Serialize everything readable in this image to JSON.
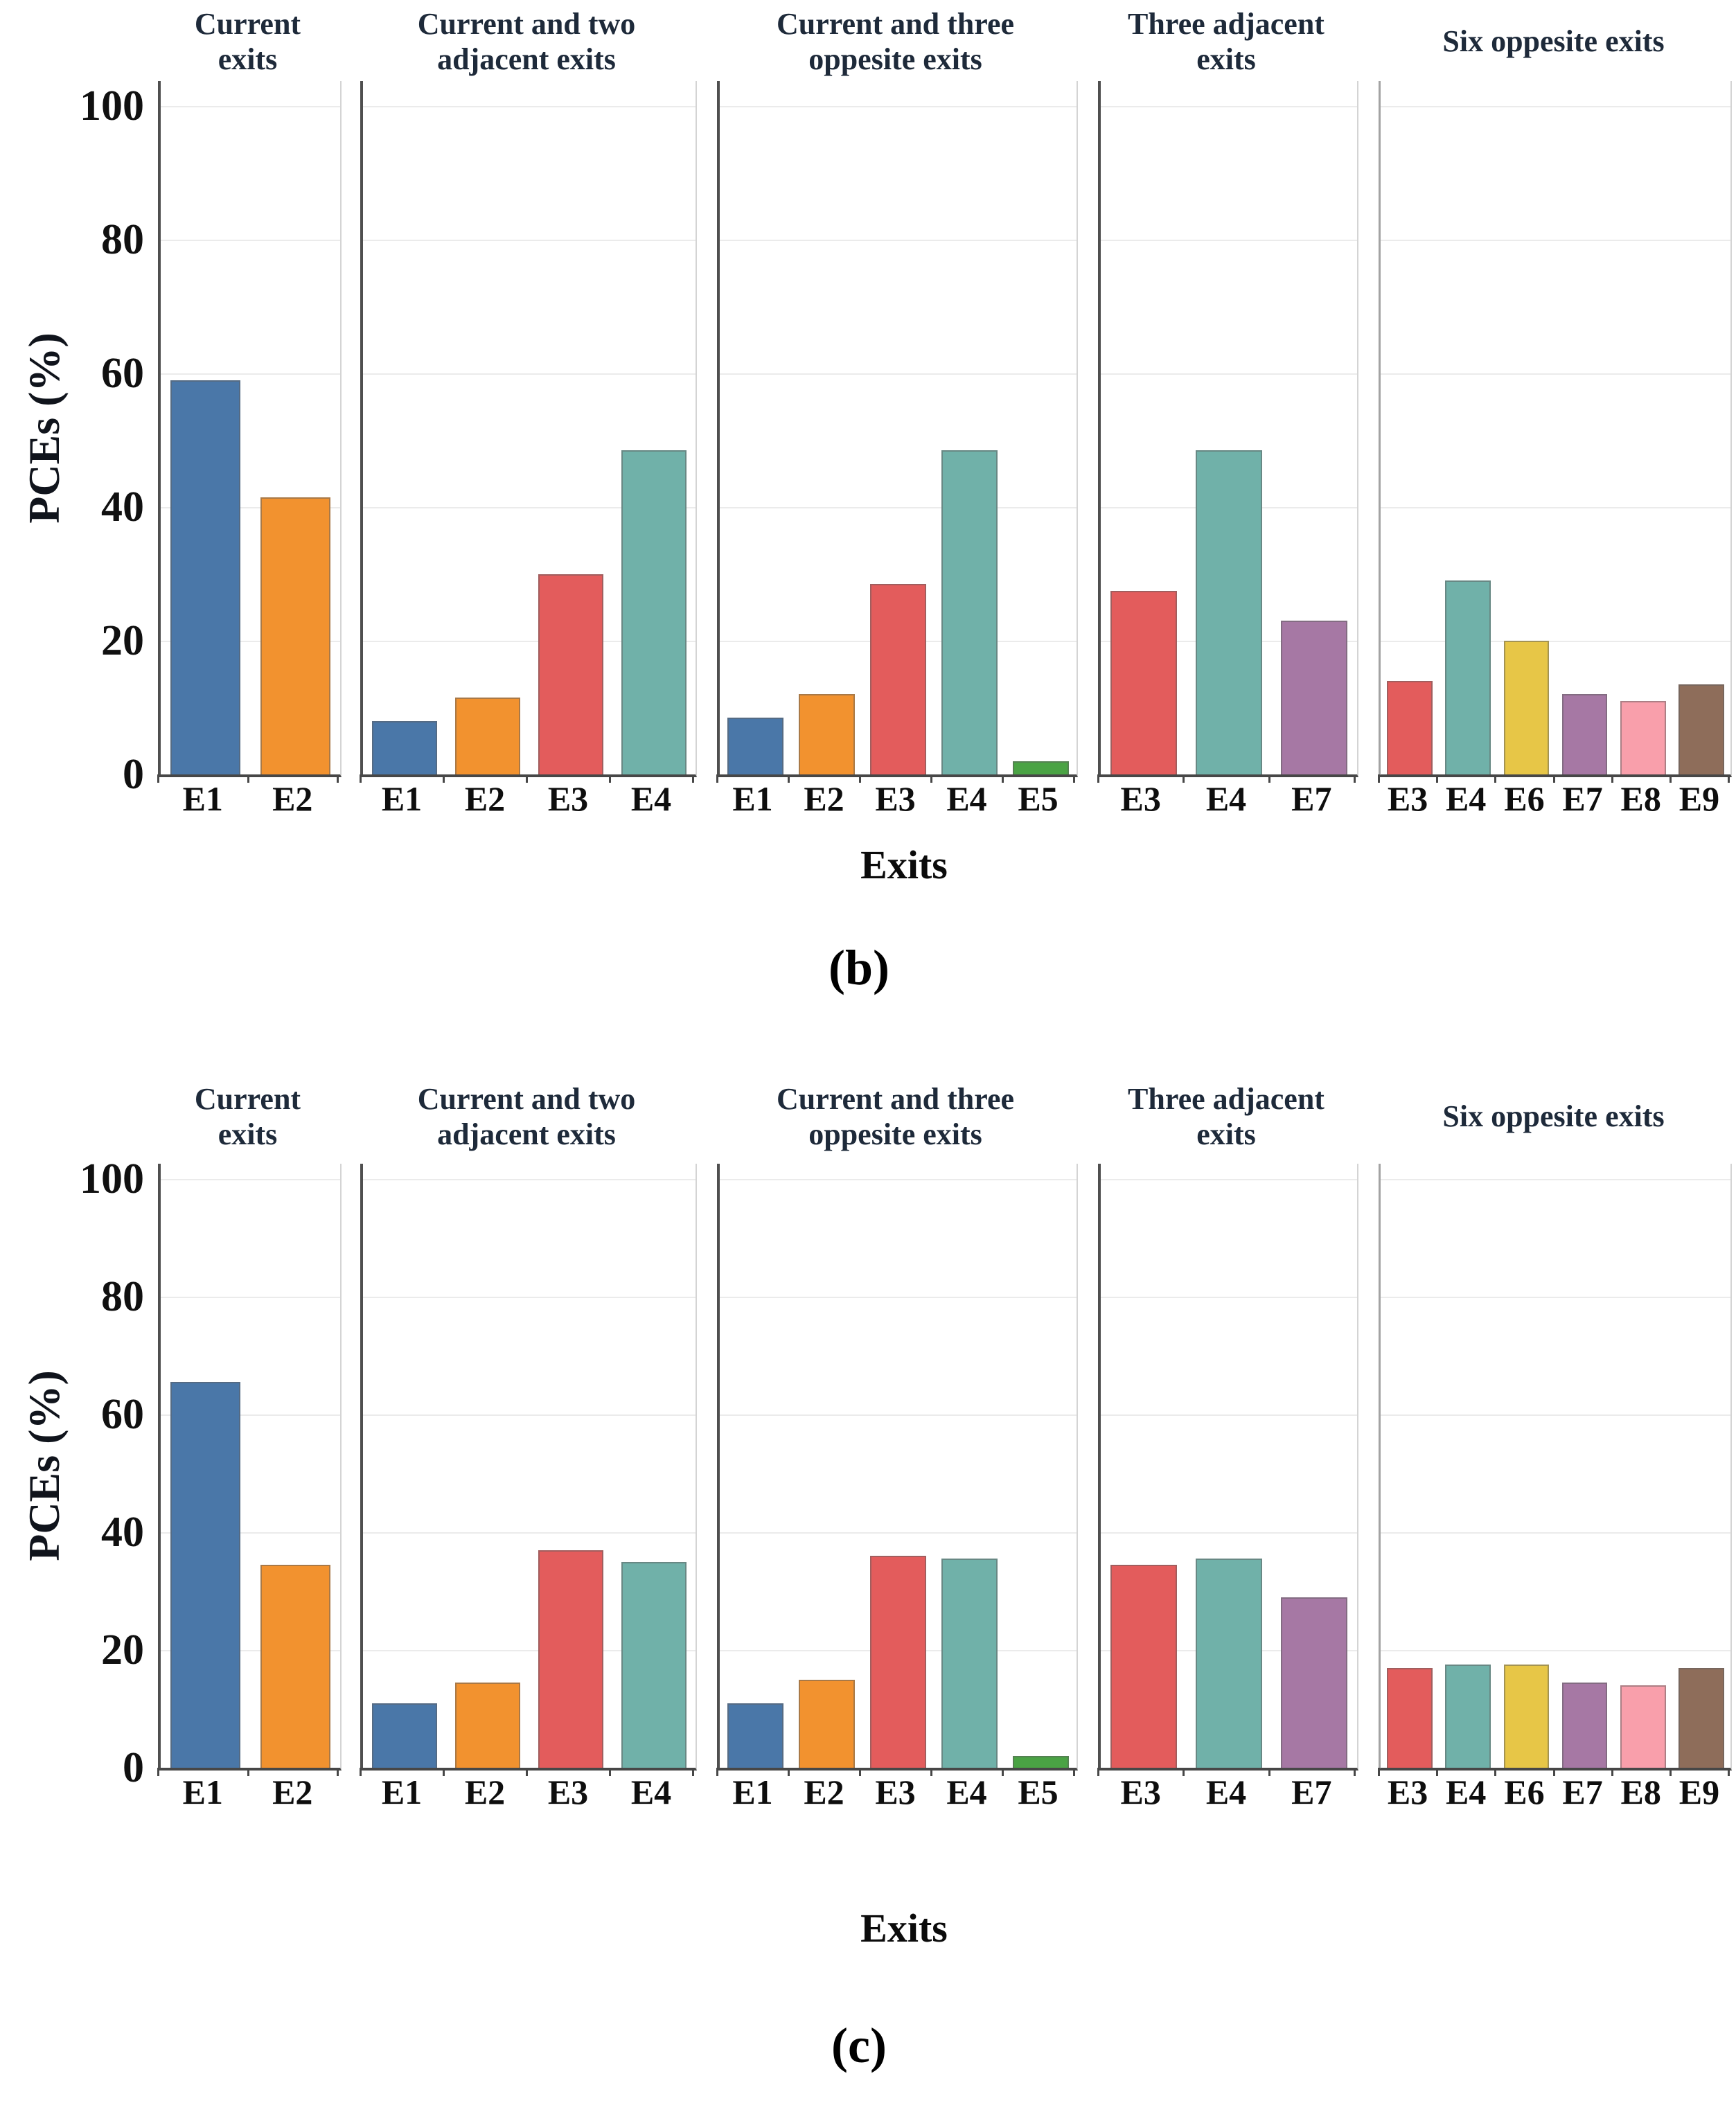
{
  "figure": {
    "y_axis_label": "PCEs (%)",
    "x_axis_label": "Exits",
    "captions": [
      "(b)",
      "(c)"
    ]
  },
  "colors": {
    "E1": "#4a77a8",
    "E2": "#f2922f",
    "E3": "#e35c5c",
    "E4": "#70b1a9",
    "E5": "#4aa344",
    "E6": "#e7c647",
    "E7": "#a678a4",
    "E8": "#f99fab",
    "E9": "#8e6d5a"
  },
  "chart_data": [
    {
      "type": "bar",
      "caption": "(b)",
      "ylabel": "PCEs (%)",
      "xlabel": "Exits",
      "ylim": [
        0,
        100
      ],
      "yticks": [
        0,
        20,
        40,
        60,
        80,
        100
      ],
      "grid": "horizontal",
      "legend": "none",
      "panels": [
        {
          "title": "Current exits",
          "categories": [
            "E1",
            "E2"
          ],
          "values": [
            59,
            41.5
          ]
        },
        {
          "title": "Current and two adjacent exits",
          "categories": [
            "E1",
            "E2",
            "E3",
            "E4"
          ],
          "values": [
            8,
            11.5,
            30,
            48.5
          ]
        },
        {
          "title": "Current and three oppesite exits",
          "categories": [
            "E1",
            "E2",
            "E3",
            "E4",
            "E5"
          ],
          "values": [
            8.5,
            12,
            28.5,
            48.5,
            2
          ]
        },
        {
          "title": "Three adjacent exits",
          "categories": [
            "E3",
            "E4",
            "E7"
          ],
          "values": [
            27.5,
            48.5,
            23
          ]
        },
        {
          "title": "Six oppesite exits",
          "categories": [
            "E3",
            "E4",
            "E6",
            "E7",
            "E8",
            "E9"
          ],
          "values": [
            14,
            29,
            20,
            12,
            11,
            13.5
          ]
        }
      ]
    },
    {
      "type": "bar",
      "caption": "(c)",
      "ylabel": "PCEs (%)",
      "xlabel": "Exits",
      "ylim": [
        0,
        100
      ],
      "yticks": [
        0,
        20,
        40,
        60,
        80,
        100
      ],
      "grid": "horizontal",
      "legend": "none",
      "panels": [
        {
          "title": "Current exits",
          "categories": [
            "E1",
            "E2"
          ],
          "values": [
            65.5,
            34.5
          ]
        },
        {
          "title": "Current and two adjacent exits",
          "categories": [
            "E1",
            "E2",
            "E3",
            "E4"
          ],
          "values": [
            11,
            14.5,
            37,
            35
          ]
        },
        {
          "title": "Current and three oppesite exits",
          "categories": [
            "E1",
            "E2",
            "E3",
            "E4",
            "E5"
          ],
          "values": [
            11,
            15,
            36,
            35.5,
            2
          ]
        },
        {
          "title": "Three adjacent exits",
          "categories": [
            "E3",
            "E4",
            "E7"
          ],
          "values": [
            34.5,
            35.5,
            29
          ]
        },
        {
          "title": "Six oppesite exits",
          "categories": [
            "E3",
            "E4",
            "E6",
            "E7",
            "E8",
            "E9"
          ],
          "values": [
            17,
            17.5,
            17.5,
            14.5,
            14,
            17
          ]
        }
      ]
    }
  ]
}
